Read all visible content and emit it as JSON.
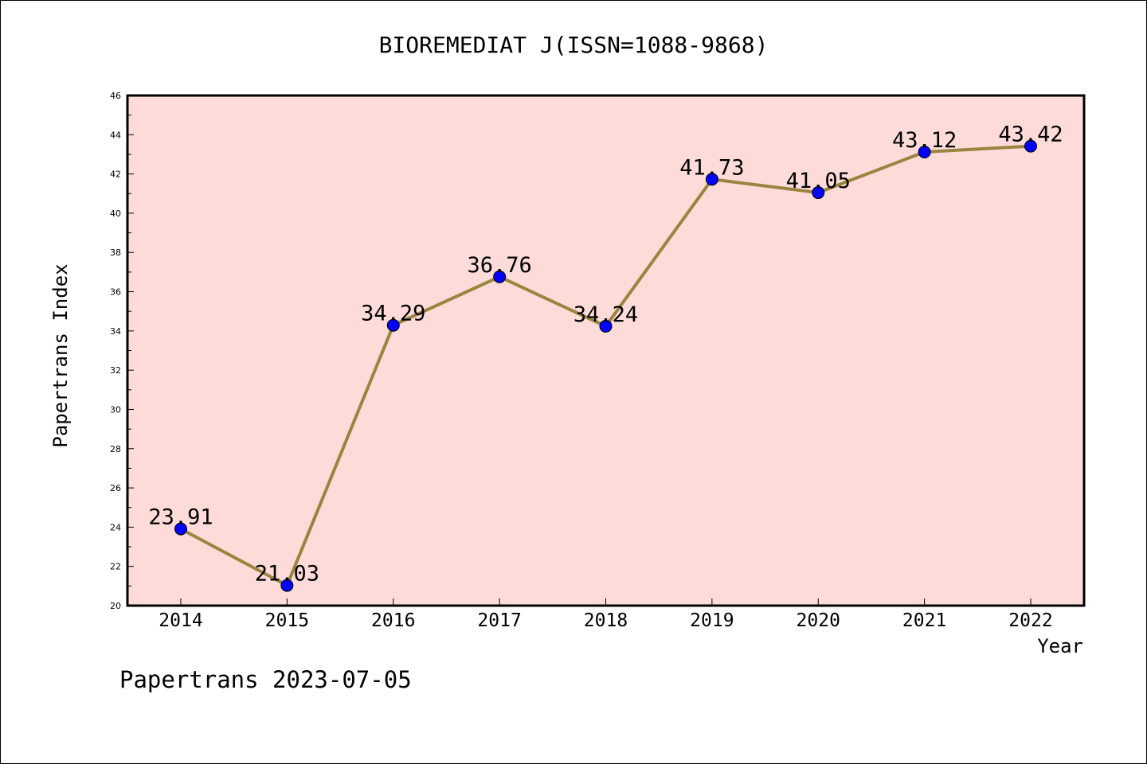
{
  "chart_data": {
    "type": "line",
    "title": "BIOREMEDIAT J(ISSN=1088-9868)",
    "xlabel": "Year",
    "ylabel": "Papertrans Index",
    "footer": "Papertrans 2023-07-05",
    "categories": [
      "2014",
      "2015",
      "2016",
      "2017",
      "2018",
      "2019",
      "2020",
      "2021",
      "2022"
    ],
    "series": [
      {
        "values": [
          23.91,
          21.03,
          34.29,
          36.76,
          34.24,
          41.73,
          41.05,
          43.12,
          43.42
        ],
        "labels": [
          "23.91",
          "21.03",
          "34.29",
          "36.76",
          "34.24",
          "41.73",
          "41.05",
          "43.12",
          "43.42"
        ]
      }
    ],
    "ylim": [
      20,
      46
    ],
    "yticks": [
      20,
      22,
      24,
      26,
      28,
      30,
      32,
      34,
      36,
      38,
      40,
      42,
      44,
      46
    ],
    "grid": false,
    "colors": {
      "plot_background": "#fddbd8",
      "line": "#9a8540",
      "marker": "#0000ff"
    }
  }
}
